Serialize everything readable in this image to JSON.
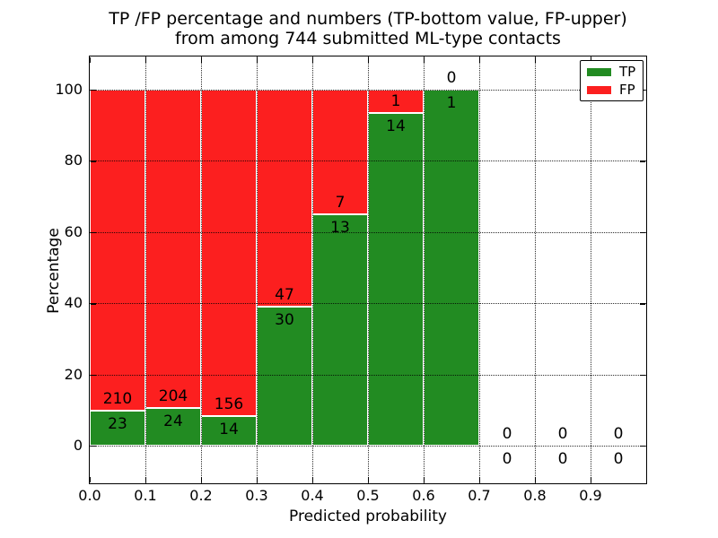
{
  "title_line1": "TP /FP percentage and numbers (TP-bottom value, FP-upper)",
  "title_line2": "from among 744 submitted ML-type contacts",
  "chart_data": {
    "type": "bar",
    "stacked": true,
    "orientation": "vertical",
    "title": "TP /FP percentage and numbers (TP-bottom value, FP-upper) from among 744 submitted ML-type contacts",
    "xlabel": "Predicted probability",
    "ylabel": "Percentage",
    "xlim": [
      0.0,
      1.0
    ],
    "ylim": [
      -11,
      110
    ],
    "grid": true,
    "total_contacts": 744,
    "bin_width": 0.1,
    "xtick_labels": [
      "0.0",
      "0.1",
      "0.2",
      "0.3",
      "0.4",
      "0.5",
      "0.6",
      "0.7",
      "0.8",
      "0.9"
    ],
    "xtick_values": [
      0.0,
      0.1,
      0.2,
      0.3,
      0.4,
      0.5,
      0.6,
      0.7,
      0.8,
      0.9
    ],
    "ytick_values": [
      0,
      20,
      40,
      60,
      80,
      100
    ],
    "series": [
      {
        "name": "TP",
        "color": "#228b22"
      },
      {
        "name": "FP",
        "color": "#fc1f1f"
      }
    ],
    "legend": {
      "position": "upper right"
    },
    "bins": [
      {
        "x0": 0.0,
        "x1": 0.1,
        "tp": 23,
        "fp": 210,
        "tp_pct": 9.87,
        "fp_pct": 90.13
      },
      {
        "x0": 0.1,
        "x1": 0.2,
        "tp": 24,
        "fp": 204,
        "tp_pct": 10.53,
        "fp_pct": 89.47
      },
      {
        "x0": 0.2,
        "x1": 0.3,
        "tp": 14,
        "fp": 156,
        "tp_pct": 8.24,
        "fp_pct": 91.76
      },
      {
        "x0": 0.3,
        "x1": 0.4,
        "tp": 30,
        "fp": 47,
        "tp_pct": 38.96,
        "fp_pct": 61.04
      },
      {
        "x0": 0.4,
        "x1": 0.5,
        "tp": 13,
        "fp": 7,
        "tp_pct": 65.0,
        "fp_pct": 35.0
      },
      {
        "x0": 0.5,
        "x1": 0.6,
        "tp": 14,
        "fp": 1,
        "tp_pct": 93.33,
        "fp_pct": 6.67
      },
      {
        "x0": 0.6,
        "x1": 0.7,
        "tp": 1,
        "fp": 0,
        "tp_pct": 100.0,
        "fp_pct": 0.0
      },
      {
        "x0": 0.7,
        "x1": 0.8,
        "tp": 0,
        "fp": 0,
        "tp_pct": null,
        "fp_pct": null
      },
      {
        "x0": 0.8,
        "x1": 0.9,
        "tp": 0,
        "fp": 0,
        "tp_pct": null,
        "fp_pct": null
      },
      {
        "x0": 0.9,
        "x1": 1.0,
        "tp": 0,
        "fp": 0,
        "tp_pct": null,
        "fp_pct": null
      }
    ]
  }
}
